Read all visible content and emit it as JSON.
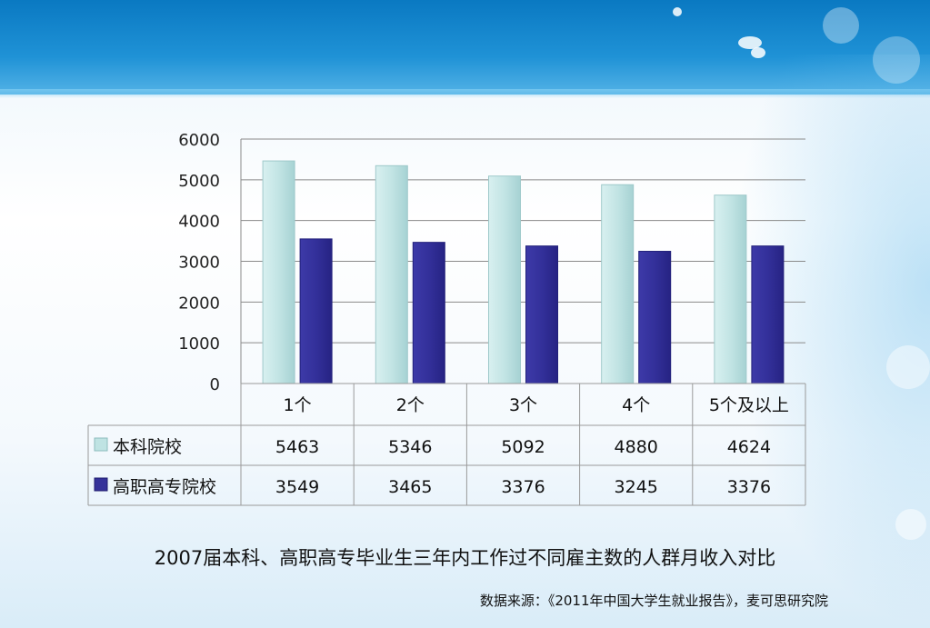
{
  "colors": {
    "series1": "#bfe3e3",
    "series2": "#35329a",
    "grid": "#8a8a8a",
    "table_border": "#9a9a9a"
  },
  "chart_data": {
    "type": "bar",
    "categories": [
      "1个",
      "2个",
      "3个",
      "4个",
      "5个及以上"
    ],
    "series": [
      {
        "name": "本科院校",
        "values": [
          5463,
          5346,
          5092,
          4880,
          4624
        ]
      },
      {
        "name": "高职高专院校",
        "values": [
          3549,
          3465,
          3376,
          3245,
          3376
        ]
      }
    ],
    "ylim": [
      0,
      6000
    ],
    "yticks": [
      "0",
      "1000",
      "2000",
      "3000",
      "4000",
      "5000",
      "6000"
    ],
    "grid": true,
    "legend": "data-table-left",
    "title": "2007届本科、高职高专毕业生三年内工作过不同雇主数的人群月收入对比"
  },
  "source": "数据来源：《2011年中国大学生就业报告》，麦可思研究院"
}
